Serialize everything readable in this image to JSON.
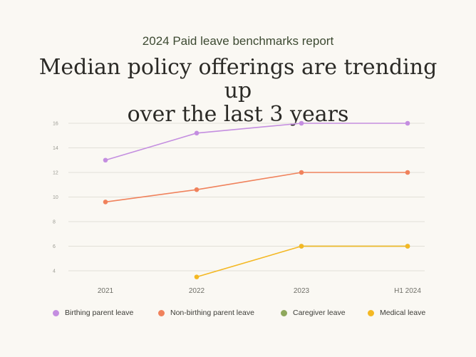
{
  "header": {
    "subtitle": "2024 Paid leave benchmarks report",
    "title_line1": "Median policy offerings are trending up",
    "title_line2": "over the last 3 years"
  },
  "chart_data": {
    "type": "line",
    "title": "Median policy offerings are trending up over the last 3 years",
    "subtitle": "2024 Paid leave benchmarks report",
    "categories": [
      "2021",
      "2022",
      "2023",
      "H1 2024"
    ],
    "yticks": [
      4,
      6,
      8,
      10,
      12,
      14,
      16
    ],
    "ylim": [
      3,
      16.5
    ],
    "grid": true,
    "legend_position": "bottom",
    "series": [
      {
        "name": "Birthing parent leave",
        "color": "#c48ee0",
        "values": [
          13,
          15.2,
          16,
          16
        ]
      },
      {
        "name": "Non-birthing parent leave",
        "color": "#f0825c",
        "values": [
          9.6,
          10.6,
          12,
          12
        ]
      },
      {
        "name": "Caregiver leave",
        "color": "#8fa85c",
        "values": [
          null,
          null,
          6,
          6
        ]
      },
      {
        "name": "Medical leave",
        "color": "#f4b823",
        "values": [
          null,
          3.5,
          6,
          6
        ]
      }
    ]
  }
}
